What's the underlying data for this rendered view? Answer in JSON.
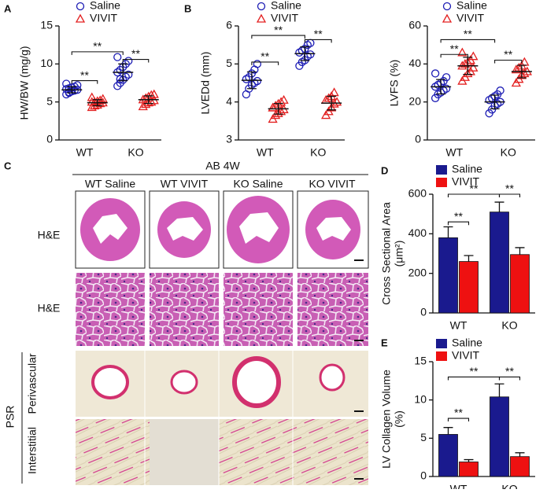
{
  "chart_data": [
    {
      "type": "strip",
      "panel": "A",
      "ylabel": [
        "HW/BW (mg/g)"
      ],
      "categories": [
        "WT",
        "KO"
      ],
      "ylim": [
        0,
        15
      ],
      "yticks": [
        0,
        5,
        10,
        15
      ],
      "series": [
        {
          "name": "Saline",
          "color": "#1c1cb4",
          "marker": "circle",
          "values": [
            [
              6.0,
              6.2,
              6.4,
              6.5,
              6.6,
              6.7,
              6.8,
              6.9,
              7.0,
              7.2,
              7.4,
              6.3
            ],
            [
              7.1,
              7.5,
              7.9,
              8.3,
              8.6,
              8.9,
              9.2,
              9.6,
              10.0,
              10.4,
              10.9,
              8.0
            ]
          ],
          "mean": [
            6.6,
            8.9
          ],
          "sd": [
            0.4,
            1.1
          ]
        },
        {
          "name": "VIVIT",
          "color": "#e32020",
          "marker": "triangle",
          "values": [
            [
              4.3,
              4.5,
              4.6,
              4.8,
              4.9,
              5.0,
              5.0,
              5.1,
              5.2,
              5.4,
              5.6
            ],
            [
              4.4,
              4.7,
              4.9,
              5.0,
              5.2,
              5.3,
              5.5,
              5.7,
              5.9,
              6.0
            ]
          ],
          "mean": [
            4.9,
            5.3
          ],
          "sd": [
            0.4,
            0.5
          ]
        }
      ],
      "brackets": [
        {
          "label": "**",
          "y": 7.8,
          "from": 0,
          "to": 1
        },
        {
          "label": "**",
          "y": 11.6,
          "from": 0,
          "to": 2
        },
        {
          "label": "**",
          "y": 10.6,
          "from": 2,
          "to": 3
        }
      ]
    },
    {
      "type": "strip",
      "panel": "B",
      "ylabel": [
        "LVEDd (mm)"
      ],
      "categories": [
        "WT",
        "KO"
      ],
      "ylim": [
        3,
        6
      ],
      "yticks": [
        3,
        4,
        5,
        6
      ],
      "series": [
        {
          "name": "Saline",
          "color": "#1c1cb4",
          "marker": "circle",
          "values": [
            [
              4.2,
              4.35,
              4.45,
              4.5,
              4.55,
              4.6,
              4.65,
              4.75,
              4.85,
              5.0
            ],
            [
              4.95,
              5.05,
              5.1,
              5.2,
              5.25,
              5.3,
              5.35,
              5.4,
              5.5,
              5.55
            ]
          ],
          "mean": [
            4.57,
            5.27
          ],
          "sd": [
            0.22,
            0.18
          ]
        },
        {
          "name": "VIVIT",
          "color": "#e32020",
          "marker": "triangle",
          "values": [
            [
              3.55,
              3.65,
              3.7,
              3.75,
              3.8,
              3.85,
              3.9,
              3.95,
              4.0,
              4.05,
              3.85
            ],
            [
              3.65,
              3.75,
              3.85,
              3.95,
              4.0,
              4.05,
              4.1,
              4.15,
              4.25
            ]
          ],
          "mean": [
            3.82,
            3.97
          ],
          "sd": [
            0.14,
            0.18
          ]
        }
      ],
      "brackets": [
        {
          "label": "**",
          "y": 5.05,
          "from": 0,
          "to": 1
        },
        {
          "label": "**",
          "y": 5.75,
          "from": 0,
          "to": 2
        },
        {
          "label": "**",
          "y": 5.64,
          "from": 2,
          "to": 3
        }
      ]
    },
    {
      "type": "strip",
      "ylabel": [
        "LVFS (%)"
      ],
      "categories": [
        "WT",
        "KO"
      ],
      "ylim": [
        0,
        60
      ],
      "yticks": [
        0,
        20,
        40,
        60
      ],
      "series": [
        {
          "name": "Saline",
          "color": "#1c1cb4",
          "marker": "circle",
          "values": [
            [
              22,
              24,
              25,
              26,
              27,
              28,
              29,
              30,
              31,
              33,
              35
            ],
            [
              14,
              16,
              18,
              19,
              20,
              21,
              22,
              23,
              24,
              26
            ]
          ],
          "mean": [
            28,
            20
          ],
          "sd": [
            3.8,
            3.6
          ]
        },
        {
          "name": "VIVIT",
          "color": "#e32020",
          "marker": "triangle",
          "values": [
            [
              31,
              33,
              35,
              36,
              38,
              39,
              40,
              41,
              42,
              44,
              46
            ],
            [
              30,
              32,
              34,
              35,
              36,
              37,
              38,
              39,
              41
            ]
          ],
          "mean": [
            39,
            36
          ],
          "sd": [
            4.5,
            3.3
          ]
        }
      ],
      "brackets": [
        {
          "label": "**",
          "y": 45,
          "from": 0,
          "to": 1
        },
        {
          "label": "**",
          "y": 52.8,
          "from": 0,
          "to": 2
        },
        {
          "label": "**",
          "y": 42,
          "from": 2,
          "to": 3
        }
      ]
    },
    {
      "type": "bar",
      "panel": "D",
      "ylabel": [
        "Cross Sectional Area",
        "(μm²)"
      ],
      "categories": [
        "WT",
        "KO"
      ],
      "ylim": [
        0,
        600
      ],
      "yticks": [
        0,
        200,
        400,
        600
      ],
      "series": [
        {
          "name": "Saline",
          "color": "#1a1a8e",
          "values": [
            380,
            510
          ],
          "errors": [
            55,
            50
          ]
        },
        {
          "name": "VIVIT",
          "color": "#ee1111",
          "values": [
            260,
            295
          ],
          "errors": [
            30,
            35
          ]
        }
      ],
      "brackets": [
        {
          "label": "**",
          "y": 460,
          "from": 0,
          "to": 1
        },
        {
          "label": "**",
          "y": 600,
          "from": 0,
          "to": 2
        },
        {
          "label": "**",
          "y": 600,
          "from": 2,
          "to": 3
        }
      ]
    },
    {
      "type": "bar",
      "panel": "E",
      "ylabel": [
        "LV Collagen Volume",
        "(%)"
      ],
      "categories": [
        "WT",
        "KO"
      ],
      "ylim": [
        0,
        15
      ],
      "yticks": [
        0,
        5,
        10,
        15
      ],
      "series": [
        {
          "name": "Saline",
          "color": "#1a1a8e",
          "values": [
            5.5,
            10.4
          ],
          "errors": [
            0.9,
            1.7
          ]
        },
        {
          "name": "VIVIT",
          "color": "#ee1111",
          "values": [
            1.9,
            2.6
          ],
          "errors": [
            0.3,
            0.5
          ]
        }
      ],
      "brackets": [
        {
          "label": "**",
          "y": 7.6,
          "from": 0,
          "to": 1
        },
        {
          "label": "**",
          "y": 13.0,
          "from": 0,
          "to": 2
        },
        {
          "label": "**",
          "y": 13.0,
          "from": 2,
          "to": 3
        }
      ]
    }
  ],
  "histology": {
    "panel": "C",
    "title": "AB 4W",
    "columns": [
      "WT Saline",
      "WT VIVIT",
      "KO Saline",
      "KO VIVIT"
    ],
    "rows": [
      "H&E",
      "H&E"
    ],
    "group": "PSR",
    "subrows": [
      "Perivascular",
      "Interstitial"
    ]
  }
}
